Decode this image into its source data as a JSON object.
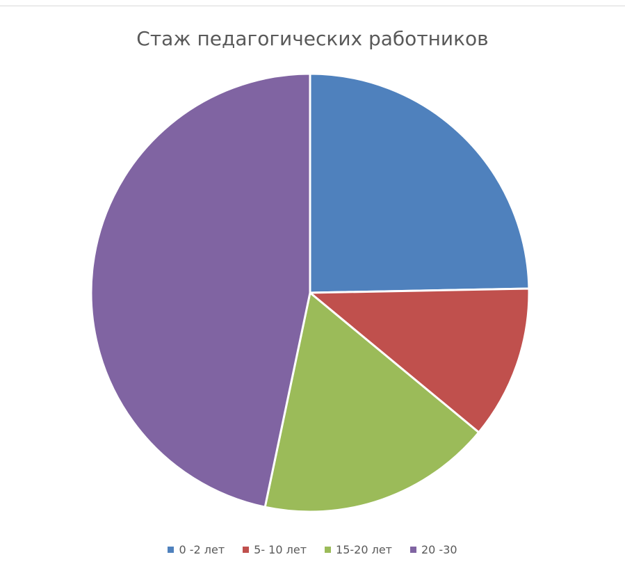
{
  "chart_data": {
    "type": "pie",
    "title": "Стаж педагогических работников",
    "categories": [
      "0 -2 лет",
      "5- 10 лет",
      "15-20 лет",
      "20 -30"
    ],
    "values": [
      24.7,
      11.3,
      17.3,
      46.7
    ],
    "colors": [
      "#4f81bd",
      "#c0504d",
      "#9bbb59",
      "#8064a2"
    ],
    "legend": "bottom"
  }
}
